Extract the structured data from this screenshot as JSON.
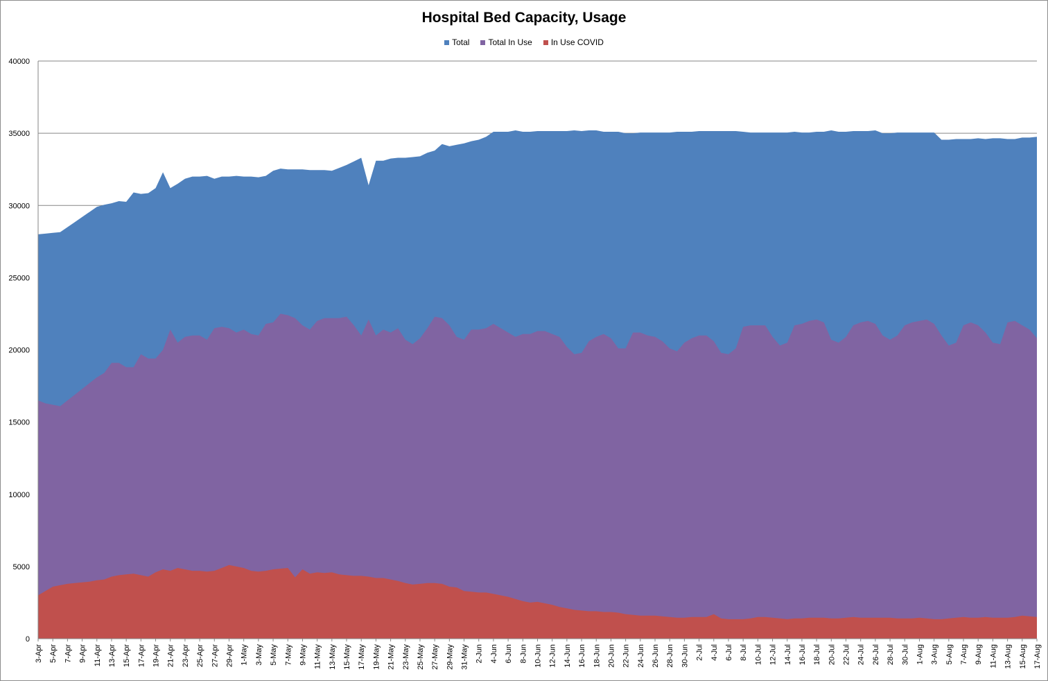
{
  "chart_data": {
    "type": "area",
    "title": "Hospital Bed Capacity, Usage",
    "xlabel": "",
    "ylabel": "",
    "ylim": [
      0,
      40000
    ],
    "yticks": [
      0,
      5000,
      10000,
      15000,
      20000,
      25000,
      30000,
      35000,
      40000
    ],
    "grid": true,
    "legend_position": "top",
    "start_date": "3-Apr",
    "day_count": 137,
    "x_tick_labels": [
      "3-Apr",
      "5-Apr",
      "7-Apr",
      "9-Apr",
      "11-Apr",
      "13-Apr",
      "15-Apr",
      "17-Apr",
      "19-Apr",
      "21-Apr",
      "23-Apr",
      "25-Apr",
      "27-Apr",
      "29-Apr",
      "1-May",
      "3-May",
      "5-May",
      "7-May",
      "9-May",
      "11-May",
      "13-May",
      "15-May",
      "17-May",
      "19-May",
      "21-May",
      "23-May",
      "25-May",
      "27-May",
      "29-May",
      "31-May",
      "2-Jun",
      "4-Jun",
      "6-Jun",
      "8-Jun",
      "10-Jun",
      "12-Jun",
      "14-Jun",
      "16-Jun",
      "18-Jun",
      "20-Jun",
      "22-Jun",
      "24-Jun",
      "26-Jun",
      "28-Jun",
      "30-Jun",
      "2-Jul",
      "4-Jul",
      "6-Jul",
      "8-Jul",
      "10-Jul",
      "12-Jul",
      "14-Jul",
      "16-Jul",
      "18-Jul",
      "20-Jul",
      "22-Jul",
      "24-Jul",
      "26-Jul",
      "28-Jul",
      "30-Jul",
      "1-Aug",
      "3-Aug",
      "5-Aug",
      "7-Aug",
      "9-Aug",
      "11-Aug",
      "13-Aug",
      "15-Aug",
      "17-Aug"
    ],
    "series": [
      {
        "name": "Total",
        "color": "#4f81bd",
        "values": [
          28000,
          28050,
          28100,
          28150,
          28500,
          28850,
          29200,
          29550,
          29900,
          30050,
          30150,
          30300,
          30250,
          30900,
          30800,
          30850,
          31200,
          32300,
          31200,
          31500,
          31850,
          32000,
          32000,
          32050,
          31850,
          32000,
          32000,
          32050,
          32000,
          32000,
          31950,
          32050,
          32400,
          32550,
          32500,
          32500,
          32500,
          32450,
          32450,
          32450,
          32400,
          32600,
          32800,
          33050,
          33300,
          31400,
          33100,
          33100,
          33250,
          33300,
          33300,
          33350,
          33400,
          33650,
          33800,
          34250,
          34100,
          34200,
          34300,
          34450,
          34550,
          34750,
          35100,
          35100,
          35100,
          35200,
          35100,
          35100,
          35150,
          35150,
          35150,
          35150,
          35150,
          35200,
          35150,
          35200,
          35200,
          35100,
          35100,
          35100,
          35000,
          35000,
          35050,
          35050,
          35050,
          35050,
          35050,
          35100,
          35100,
          35100,
          35150,
          35150,
          35150,
          35150,
          35150,
          35150,
          35100,
          35050,
          35050,
          35050,
          35050,
          35050,
          35050,
          35100,
          35050,
          35050,
          35100,
          35100,
          35200,
          35100,
          35100,
          35150,
          35150,
          35150,
          35200,
          35000,
          35000,
          35050,
          35050,
          35050,
          35050,
          35050,
          35050,
          34550,
          34550,
          34600,
          34600,
          34600,
          34650,
          34600,
          34650,
          34650,
          34600,
          34600,
          34700,
          34700,
          34750
        ]
      },
      {
        "name": "Total In Use",
        "color": "#8064a2",
        "values": [
          16500,
          16300,
          16200,
          16100,
          16500,
          16900,
          17300,
          17700,
          18100,
          18400,
          19100,
          19100,
          18800,
          18800,
          19700,
          19400,
          19400,
          20000,
          21400,
          20500,
          20900,
          21000,
          21000,
          20700,
          21500,
          21600,
          21500,
          21200,
          21400,
          21100,
          21000,
          21800,
          21900,
          22500,
          22400,
          22200,
          21700,
          21400,
          22000,
          22200,
          22200,
          22200,
          22300,
          21700,
          21000,
          22100,
          21000,
          21400,
          21200,
          21500,
          20700,
          20400,
          20800,
          21500,
          22300,
          22200,
          21700,
          20900,
          20700,
          21400,
          21400,
          21500,
          21800,
          21500,
          21200,
          20900,
          21100,
          21100,
          21300,
          21300,
          21100,
          20900,
          20200,
          19700,
          19800,
          20600,
          20900,
          21100,
          20800,
          20100,
          20100,
          21200,
          21200,
          21000,
          20900,
          20600,
          20100,
          19900,
          20500,
          20800,
          21000,
          21000,
          20600,
          19800,
          19700,
          20100,
          21600,
          21700,
          21700,
          21700,
          20900,
          20300,
          20500,
          21700,
          21800,
          22000,
          22100,
          21900,
          20700,
          20500,
          20900,
          21700,
          21900,
          22000,
          21800,
          21000,
          20700,
          21000,
          21700,
          21900,
          22000,
          22100,
          21800,
          21000,
          20300,
          20500,
          21700,
          21900,
          21700,
          21200,
          20500,
          20400,
          21900,
          22000,
          21700,
          21400,
          20800
        ]
      },
      {
        "name": "In Use COVID",
        "color": "#c0504d",
        "values": [
          3000,
          3300,
          3600,
          3700,
          3800,
          3850,
          3900,
          3950,
          4050,
          4100,
          4300,
          4400,
          4450,
          4500,
          4400,
          4300,
          4600,
          4800,
          4700,
          4900,
          4800,
          4700,
          4700,
          4650,
          4700,
          4900,
          5100,
          5000,
          4900,
          4700,
          4650,
          4700,
          4800,
          4850,
          4900,
          4250,
          4800,
          4500,
          4600,
          4550,
          4600,
          4450,
          4400,
          4350,
          4350,
          4300,
          4200,
          4200,
          4100,
          4000,
          3850,
          3750,
          3800,
          3850,
          3850,
          3800,
          3600,
          3550,
          3300,
          3250,
          3200,
          3200,
          3100,
          3000,
          2900,
          2750,
          2600,
          2500,
          2550,
          2450,
          2350,
          2200,
          2100,
          2000,
          1950,
          1900,
          1900,
          1850,
          1850,
          1800,
          1700,
          1650,
          1600,
          1600,
          1600,
          1550,
          1500,
          1450,
          1450,
          1500,
          1500,
          1500,
          1700,
          1400,
          1350,
          1350,
          1350,
          1400,
          1500,
          1500,
          1450,
          1400,
          1350,
          1400,
          1400,
          1450,
          1450,
          1450,
          1400,
          1400,
          1450,
          1500,
          1450,
          1450,
          1450,
          1450,
          1450,
          1400,
          1400,
          1400,
          1450,
          1400,
          1350,
          1350,
          1400,
          1450,
          1500,
          1450,
          1450,
          1500,
          1450,
          1450,
          1450,
          1500,
          1600,
          1550,
          1500
        ]
      }
    ]
  }
}
